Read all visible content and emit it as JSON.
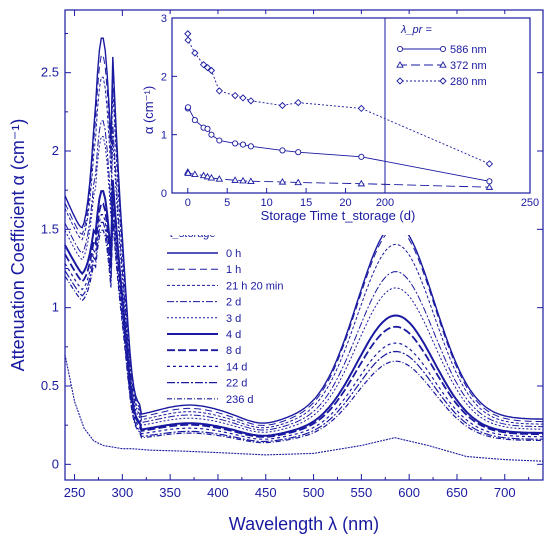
{
  "chart_data": [
    {
      "type": "line",
      "title": "",
      "xlabel": "Wavelength λ (nm)",
      "ylabel": "Attenuation Coefficient α (cm⁻¹)",
      "xlim": [
        240,
        740
      ],
      "ylim": [
        -0.1,
        2.9
      ],
      "xticks": [
        250,
        300,
        350,
        400,
        450,
        500,
        550,
        600,
        650,
        700
      ],
      "yticks": [
        0,
        0.5,
        1,
        1.5,
        2,
        2.5
      ],
      "ytick_labels": [
        "0",
        "0.5",
        "1",
        "1.5",
        "2",
        "2.5"
      ],
      "legend_title": "t_storage =",
      "legend_position": "middle-left",
      "series": [
        {
          "name": "0 h",
          "dash": "",
          "width": 1.4,
          "peak1": 2.73,
          "valley": 1.47,
          "plateau": 0.36,
          "peak2": 1.46
        },
        {
          "name": "1 h",
          "dash": "7 4",
          "width": 1.0,
          "peak1": 2.62,
          "valley": 1.43,
          "plateau": 0.34,
          "peak2": 1.44
        },
        {
          "name": "21 h 20 min",
          "dash": "3 2",
          "width": 1.0,
          "peak1": 2.48,
          "valley": 1.4,
          "plateau": 0.32,
          "peak2": 1.34
        },
        {
          "name": "2 d",
          "dash": "7 2 2 2",
          "width": 1.0,
          "peak1": 2.2,
          "valley": 1.32,
          "plateau": 0.3,
          "peak2": 1.17
        },
        {
          "name": "3 d",
          "dash": "2 2",
          "width": 1.0,
          "peak1": 2.1,
          "valley": 1.28,
          "plateau": 0.28,
          "peak2": 1.07
        },
        {
          "name": "4 d",
          "dash": "",
          "width": 2.0,
          "peak1": 1.75,
          "valley": 1.2,
          "plateau": 0.25,
          "peak2": 0.9
        },
        {
          "name": "8 d",
          "dash": "8 3",
          "width": 1.8,
          "peak1": 1.67,
          "valley": 1.15,
          "plateau": 0.24,
          "peak2": 0.83
        },
        {
          "name": "14 d",
          "dash": "3 3",
          "width": 1.2,
          "peak1": 1.6,
          "valley": 1.1,
          "plateau": 0.22,
          "peak2": 0.73
        },
        {
          "name": "22 d",
          "dash": "8 2 2 2",
          "width": 1.2,
          "peak1": 1.55,
          "valley": 1.06,
          "plateau": 0.2,
          "peak2": 0.68
        },
        {
          "name": "236 d",
          "dash": "5 2 1 2",
          "width": 1.2,
          "peak1": 1.5,
          "valley": 1.03,
          "plateau": 0.19,
          "peak2": 0.62
        }
      ],
      "baseline_curve": {
        "x": [
          240,
          250,
          260,
          270,
          280,
          290,
          300,
          310,
          330,
          360,
          400,
          450,
          500,
          550,
          585,
          620,
          660,
          700,
          740
        ],
        "y": [
          0.7,
          0.4,
          0.23,
          0.15,
          0.12,
          0.11,
          0.1,
          0.1,
          0.09,
          0.085,
          0.075,
          0.06,
          0.07,
          0.12,
          0.17,
          0.12,
          0.05,
          0.03,
          0.02
        ]
      }
    },
    {
      "type": "line",
      "xlabel": "Storage Time  t_storage  (d)",
      "ylabel": "α  (cm⁻¹)",
      "xlim": [
        -2,
        240
      ],
      "ylim": [
        0,
        3
      ],
      "xticks": [
        0,
        5,
        10,
        15,
        20
      ],
      "xticks_break": [
        200,
        250
      ],
      "yticks": [
        0,
        1,
        2,
        3
      ],
      "legend_title": "λ_pr =",
      "legend_position": "top-right",
      "series": [
        {
          "name": "586 nm",
          "marker": "circle",
          "dash": "",
          "x": [
            0,
            0.04,
            0.9,
            2,
            2.5,
            3,
            4,
            6,
            7,
            8,
            12,
            14,
            22,
            236
          ],
          "y": [
            1.45,
            1.47,
            1.25,
            1.12,
            1.1,
            1.0,
            0.9,
            0.85,
            0.83,
            0.8,
            0.73,
            0.7,
            0.62,
            0.2
          ]
        },
        {
          "name": "372 nm",
          "marker": "triangle",
          "dash": "9 4",
          "x": [
            0,
            0.04,
            0.9,
            2,
            2.5,
            3,
            4,
            6,
            7,
            8,
            12,
            14,
            22,
            236
          ],
          "y": [
            0.36,
            0.34,
            0.32,
            0.3,
            0.28,
            0.26,
            0.24,
            0.22,
            0.21,
            0.2,
            0.19,
            0.18,
            0.16,
            0.1
          ]
        },
        {
          "name": "280 nm",
          "marker": "diamond",
          "dash": "2 2",
          "x": [
            0,
            0.04,
            0.9,
            2,
            2.5,
            3,
            4,
            6,
            7,
            8,
            12,
            14,
            22,
            236
          ],
          "y": [
            2.73,
            2.62,
            2.4,
            2.2,
            2.15,
            2.1,
            1.75,
            1.67,
            1.63,
            1.58,
            1.5,
            1.55,
            1.45,
            0.5
          ]
        }
      ]
    }
  ]
}
